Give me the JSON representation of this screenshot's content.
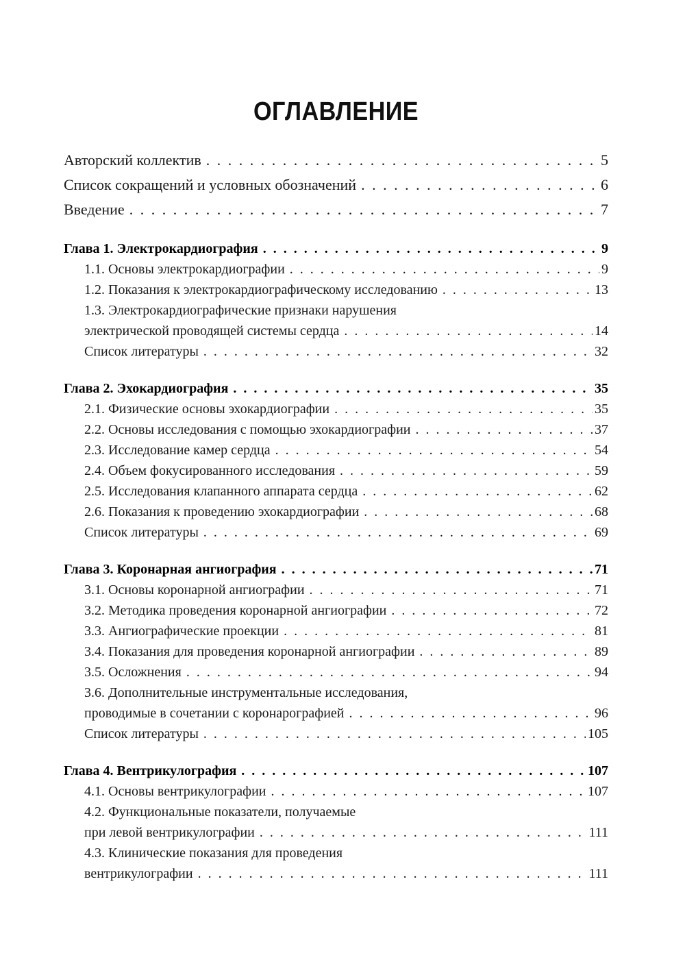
{
  "toc": {
    "title": "ОГЛАВЛЕНИЕ",
    "front_matter": [
      {
        "text": "Авторский коллектив",
        "page": "5"
      },
      {
        "text": "Список сокращений и условных обозначений",
        "page": "6"
      },
      {
        "text": "Введение",
        "page": "7"
      }
    ],
    "chapters": [
      {
        "heading": {
          "text": "Глава 1. Электрокардиография",
          "page": "9"
        },
        "items": [
          {
            "text": "1.1. Основы электрокардиографии",
            "page": "9"
          },
          {
            "text": "1.2. Показания к электрокардиографическому исследованию",
            "page": "13"
          },
          {
            "text": "1.3. Электрокардиографические признаки нарушения",
            "text2": "электрической проводящей системы сердца",
            "page": "14"
          },
          {
            "text": "Список литературы",
            "page": "32"
          }
        ]
      },
      {
        "heading": {
          "text": "Глава 2. Эхокардиография",
          "page": "35"
        },
        "items": [
          {
            "text": "2.1. Физические основы эхокардиографии",
            "page": "35"
          },
          {
            "text": "2.2. Основы исследования с помощью эхокардиографии",
            "page": "37"
          },
          {
            "text": "2.3. Исследование камер сердца",
            "page": "54"
          },
          {
            "text": "2.4. Объем фокусированного исследования",
            "page": "59"
          },
          {
            "text": "2.5. Исследования клапанного аппарата сердца",
            "page": "62"
          },
          {
            "text": "2.6. Показания к проведению эхокардиографии",
            "page": "68"
          },
          {
            "text": "Список литературы",
            "page": "69"
          }
        ]
      },
      {
        "heading": {
          "text": "Глава 3. Коронарная ангиография",
          "page": "71"
        },
        "items": [
          {
            "text": "3.1. Основы коронарной ангиографии",
            "page": "71"
          },
          {
            "text": "3.2. Методика проведения коронарной ангиографии",
            "page": "72"
          },
          {
            "text": "3.3. Ангиографические проекции",
            "page": "81"
          },
          {
            "text": "3.4. Показания для проведения коронарной ангиографии",
            "page": "89"
          },
          {
            "text": "3.5. Осложнения",
            "page": "94"
          },
          {
            "text": "3.6. Дополнительные инструментальные исследования,",
            "text2": "проводимые в сочетании с коронарографией",
            "page": "96"
          },
          {
            "text": "Список литературы",
            "page": "105"
          }
        ]
      },
      {
        "heading": {
          "text": "Глава 4. Вентрикулография",
          "page": "107"
        },
        "items": [
          {
            "text": "4.1. Основы вентрикулографии",
            "page": "107"
          },
          {
            "text": "4.2. Функциональные показатели, получаемые",
            "text2": "при левой вентрикулографии",
            "page": "111"
          },
          {
            "text": "4.3. Клинические показания для проведения",
            "text2": "вентрикулографии",
            "page": "111"
          }
        ]
      }
    ]
  }
}
